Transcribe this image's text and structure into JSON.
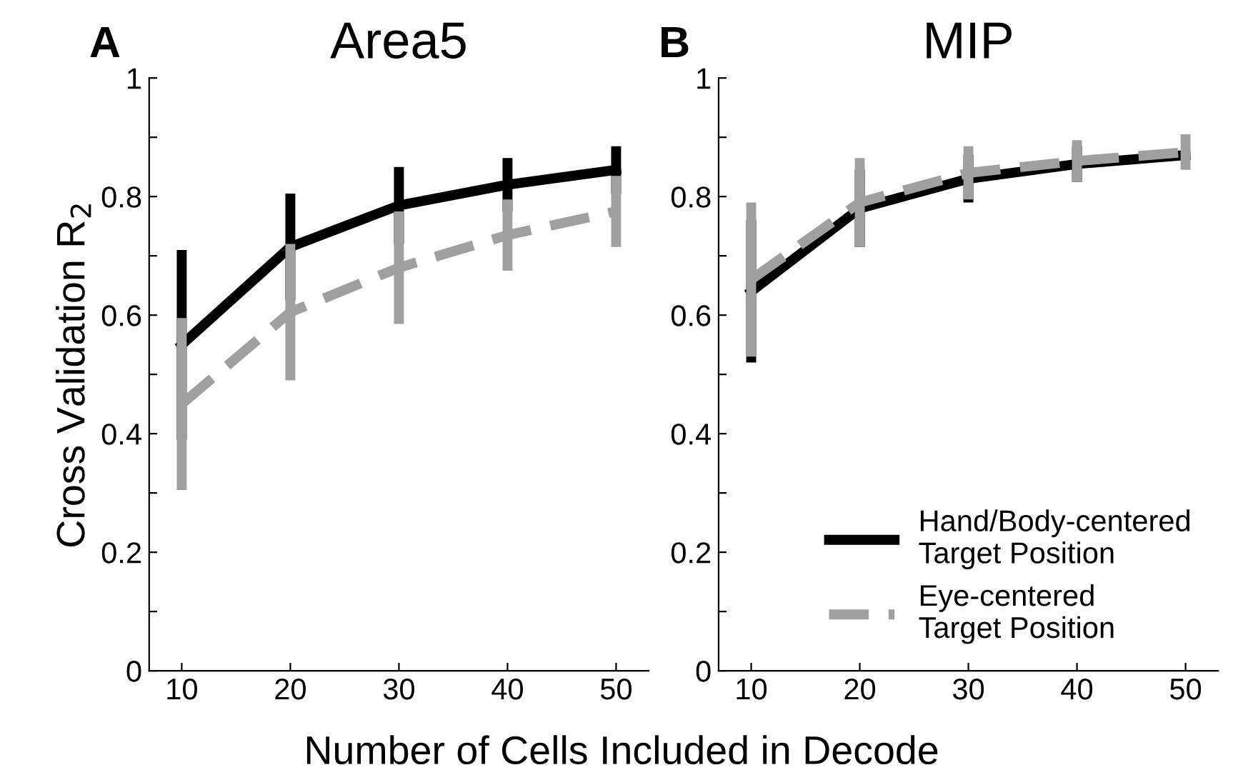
{
  "chart_data": [
    {
      "type": "line",
      "title": "Area5",
      "xlabel": "Number of Cells Included in Decode",
      "ylabel": "Cross Validation R$_{2}$",
      "annotations": [
        "A"
      ],
      "x": [
        10,
        20,
        30,
        40,
        50
      ],
      "xlim": [
        7,
        53
      ],
      "xticks": [
        10,
        20,
        30,
        40,
        50
      ],
      "ylim": [
        0,
        1
      ],
      "yticks": [
        0,
        {
          "value": 0.1,
          "label": null
        },
        0.2,
        {
          "value": 0.3,
          "label": null
        },
        0.4,
        {
          "value": 0.5,
          "label": null
        },
        0.6,
        {
          "value": 0.7,
          "label": null
        },
        0.8,
        {
          "value": 0.9,
          "label": null
        },
        1
      ],
      "grid": false,
      "legend": false,
      "marker": "none",
      "series": [
        {
          "color": "#000000",
          "line_style": "solid",
          "values": [
            0.55,
            0.715,
            0.785,
            0.82,
            0.845
          ],
          "errors": [
            0.16,
            0.09,
            0.065,
            0.045,
            0.04
          ]
        },
        {
          "color": "#a0a0a0",
          "line_style": "dashed",
          "values": [
            0.45,
            0.605,
            0.68,
            0.735,
            0.775
          ],
          "errors": [
            0.145,
            0.115,
            0.095,
            0.06,
            0.06
          ]
        }
      ]
    },
    {
      "type": "line",
      "title": "MIP",
      "annotations": [
        "B"
      ],
      "x": [
        10,
        20,
        30,
        40,
        50
      ],
      "xlim": [
        7,
        53
      ],
      "xticks": [
        10,
        20,
        30,
        40,
        50
      ],
      "ylim": [
        0,
        1
      ],
      "yticks": [
        0,
        {
          "value": 0.1,
          "label": null
        },
        0.2,
        {
          "value": 0.3,
          "label": null
        },
        0.4,
        {
          "value": 0.5,
          "label": null
        },
        0.6,
        {
          "value": 0.7,
          "label": null
        },
        0.8,
        {
          "value": 0.9,
          "label": null
        },
        1
      ],
      "grid": false,
      "legend": "bottom right",
      "marker": "none",
      "series": [
        {
          "name": "Hand/Body-centered\nTarget Position",
          "color": "#000000",
          "line_style": "solid",
          "values": [
            0.64,
            0.78,
            0.83,
            0.855,
            0.87
          ],
          "errors": [
            0.12,
            0.065,
            0.04,
            0.03,
            null
          ]
        },
        {
          "name": "Eye-centered\nTarget Position",
          "color": "#a0a0a0",
          "line_style": "dashed",
          "values": [
            0.66,
            0.79,
            0.84,
            0.86,
            0.875
          ],
          "errors": [
            0.13,
            0.075,
            0.045,
            0.035,
            0.03
          ]
        }
      ]
    }
  ]
}
